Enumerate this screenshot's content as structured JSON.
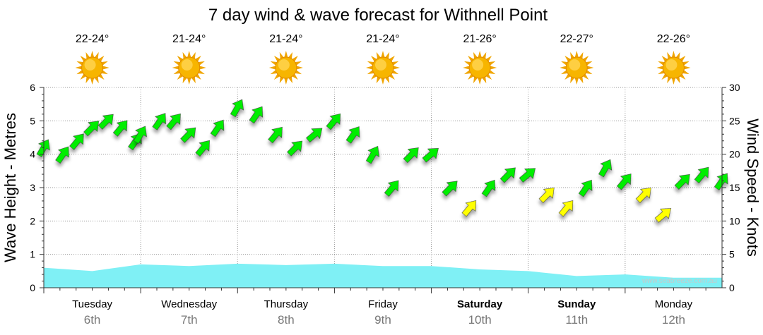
{
  "chart_data": {
    "type": "line",
    "title": "7 day wind & wave forecast for Withnell Point",
    "watermark": "www.seabreeze.com.au",
    "y_left": {
      "label": "Wave Height - Metres",
      "range": [
        0,
        6
      ],
      "ticks": [
        "0",
        "1",
        "2",
        "3",
        "4",
        "5",
        "6"
      ]
    },
    "y_right": {
      "label": "Wind Speed - Knots",
      "range": [
        0,
        30
      ],
      "ticks": [
        "0",
        "5",
        "10",
        "15",
        "20",
        "25",
        "30"
      ]
    },
    "grid": true,
    "days": [
      {
        "name": "Tuesday",
        "date": "6th",
        "temp": "22-24°",
        "weather_icon": "sun-icon",
        "bold": false
      },
      {
        "name": "Wednesday",
        "date": "7th",
        "temp": "21-24°",
        "weather_icon": "sun-icon",
        "bold": false
      },
      {
        "name": "Thursday",
        "date": "8th",
        "temp": "21-24°",
        "weather_icon": "sun-icon",
        "bold": false
      },
      {
        "name": "Friday",
        "date": "9th",
        "temp": "21-24°",
        "weather_icon": "sun-icon",
        "bold": false
      },
      {
        "name": "Saturday",
        "date": "10th",
        "temp": "21-26°",
        "weather_icon": "sun-icon",
        "bold": true
      },
      {
        "name": "Sunday",
        "date": "11th",
        "temp": "22-27°",
        "weather_icon": "sun-icon",
        "bold": true
      },
      {
        "name": "Monday",
        "date": "12th",
        "temp": "22-26°",
        "weather_icon": "sun-icon",
        "bold": false
      }
    ],
    "series": [
      {
        "type": "area",
        "color": "#7ff0f5",
        "x_day": [
          0,
          0.5,
          1,
          1.5,
          2,
          2.5,
          3,
          3.5,
          4,
          4.5,
          5,
          5.5,
          6,
          6.5,
          7
        ],
        "values": [
          0.6,
          0.5,
          0.7,
          0.65,
          0.72,
          0.68,
          0.72,
          0.65,
          0.65,
          0.55,
          0.5,
          0.35,
          0.4,
          0.3,
          0.3
        ]
      },
      {
        "type": "wind-arrows",
        "colors": {
          "low": "#ffff00",
          "mid": "#00ee00",
          "high": "#ee0000"
        },
        "color_thresholds_knots": [
          15,
          30
        ],
        "x_day": [
          0,
          0.2,
          0.35,
          0.5,
          0.65,
          0.8,
          0.95,
          1.0,
          1.2,
          1.35,
          1.5,
          1.65,
          1.8,
          2.0,
          2.2,
          2.4,
          2.6,
          2.8,
          3.0,
          3.2,
          3.4,
          3.6,
          3.8,
          4.0,
          4.2,
          4.4,
          4.6,
          4.8,
          5.0,
          5.2,
          5.4,
          5.6,
          5.8,
          6.0,
          6.2,
          6.4,
          6.6,
          6.8,
          7.0
        ],
        "values": [
          21,
          20,
          22,
          24,
          25,
          24,
          22,
          23,
          25,
          25,
          23,
          21,
          24,
          27,
          26,
          23,
          21,
          23,
          25,
          23,
          20,
          15,
          20,
          20,
          15,
          12,
          15,
          17,
          17,
          14,
          12,
          15,
          18,
          16,
          14,
          11,
          16,
          17,
          16
        ],
        "direction_deg": [
          210,
          215,
          220,
          225,
          225,
          220,
          215,
          210,
          215,
          220,
          225,
          220,
          215,
          210,
          215,
          220,
          225,
          230,
          220,
          215,
          210,
          220,
          225,
          230,
          225,
          220,
          215,
          225,
          230,
          225,
          220,
          215,
          210,
          220,
          225,
          230,
          225,
          220,
          215
        ]
      }
    ]
  }
}
